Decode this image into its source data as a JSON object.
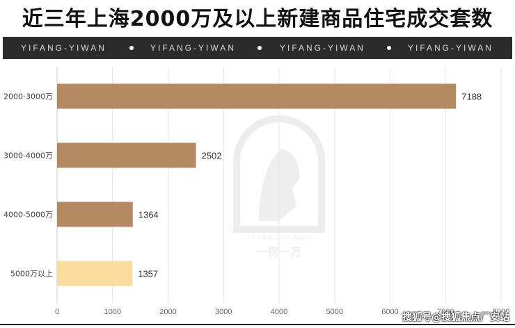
{
  "title": "近三年上海2000万及以上新建商品住宅成交套数",
  "banner": {
    "items": [
      "YIFANG-YIWAN",
      "YIFANG-YIWAN",
      "YIFANG-YIWAN",
      "YIFANG-YIWAN"
    ]
  },
  "watermark": {
    "logo_text": "一房一万",
    "arc_text": "YI FANG YI WAN"
  },
  "source_credit": "搜狐号@搜狐焦点厂安站",
  "colors": {
    "bar_main": "#b58a63",
    "bar_highlight": "#f9dd9e",
    "grid": "#e6e6e6",
    "banner_bg": "#2b2b2b"
  },
  "chart_data": {
    "type": "bar",
    "orientation": "horizontal",
    "categories": [
      "2000-3000万",
      "3000-4000万",
      "4000-5000万",
      "5000万以上"
    ],
    "values": [
      7188,
      2502,
      1364,
      1357
    ],
    "highlight_index": 3,
    "xlim": [
      0,
      8000
    ],
    "xticks": [
      0,
      1000,
      2000,
      3000,
      4000,
      5000,
      6000,
      7000,
      8000
    ],
    "grid": true,
    "title": "",
    "xlabel": "",
    "ylabel": ""
  }
}
